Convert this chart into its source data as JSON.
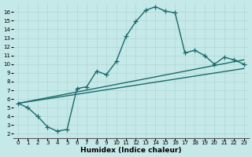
{
  "xlabel": "Humidex (Indice chaleur)",
  "xlim": [
    -0.5,
    23.5
  ],
  "ylim": [
    1.5,
    17.0
  ],
  "bg_color": "#c5e8e8",
  "grid_color": "#b2d4d4",
  "line_color": "#1a6b6b",
  "curve_x": [
    0,
    1,
    2,
    3,
    4,
    5,
    6,
    7,
    8,
    9,
    10,
    11,
    12,
    13,
    14,
    15,
    16,
    17,
    18,
    19,
    20,
    21,
    22,
    23
  ],
  "curve_y": [
    5.5,
    5.0,
    4.0,
    2.8,
    2.3,
    2.5,
    7.2,
    7.4,
    9.2,
    8.8,
    10.3,
    13.2,
    14.9,
    16.2,
    16.6,
    16.1,
    15.9,
    11.3,
    11.6,
    11.0,
    10.0,
    10.8,
    10.5,
    10.0
  ],
  "line2_x": [
    0,
    23
  ],
  "line2_y": [
    5.5,
    10.5
  ],
  "line3_x": [
    0,
    23
  ],
  "line3_y": [
    5.5,
    9.5
  ],
  "marker_size": 4,
  "line_width": 1.0,
  "tick_fontsize": 5.0,
  "xlabel_fontsize": 6.5
}
